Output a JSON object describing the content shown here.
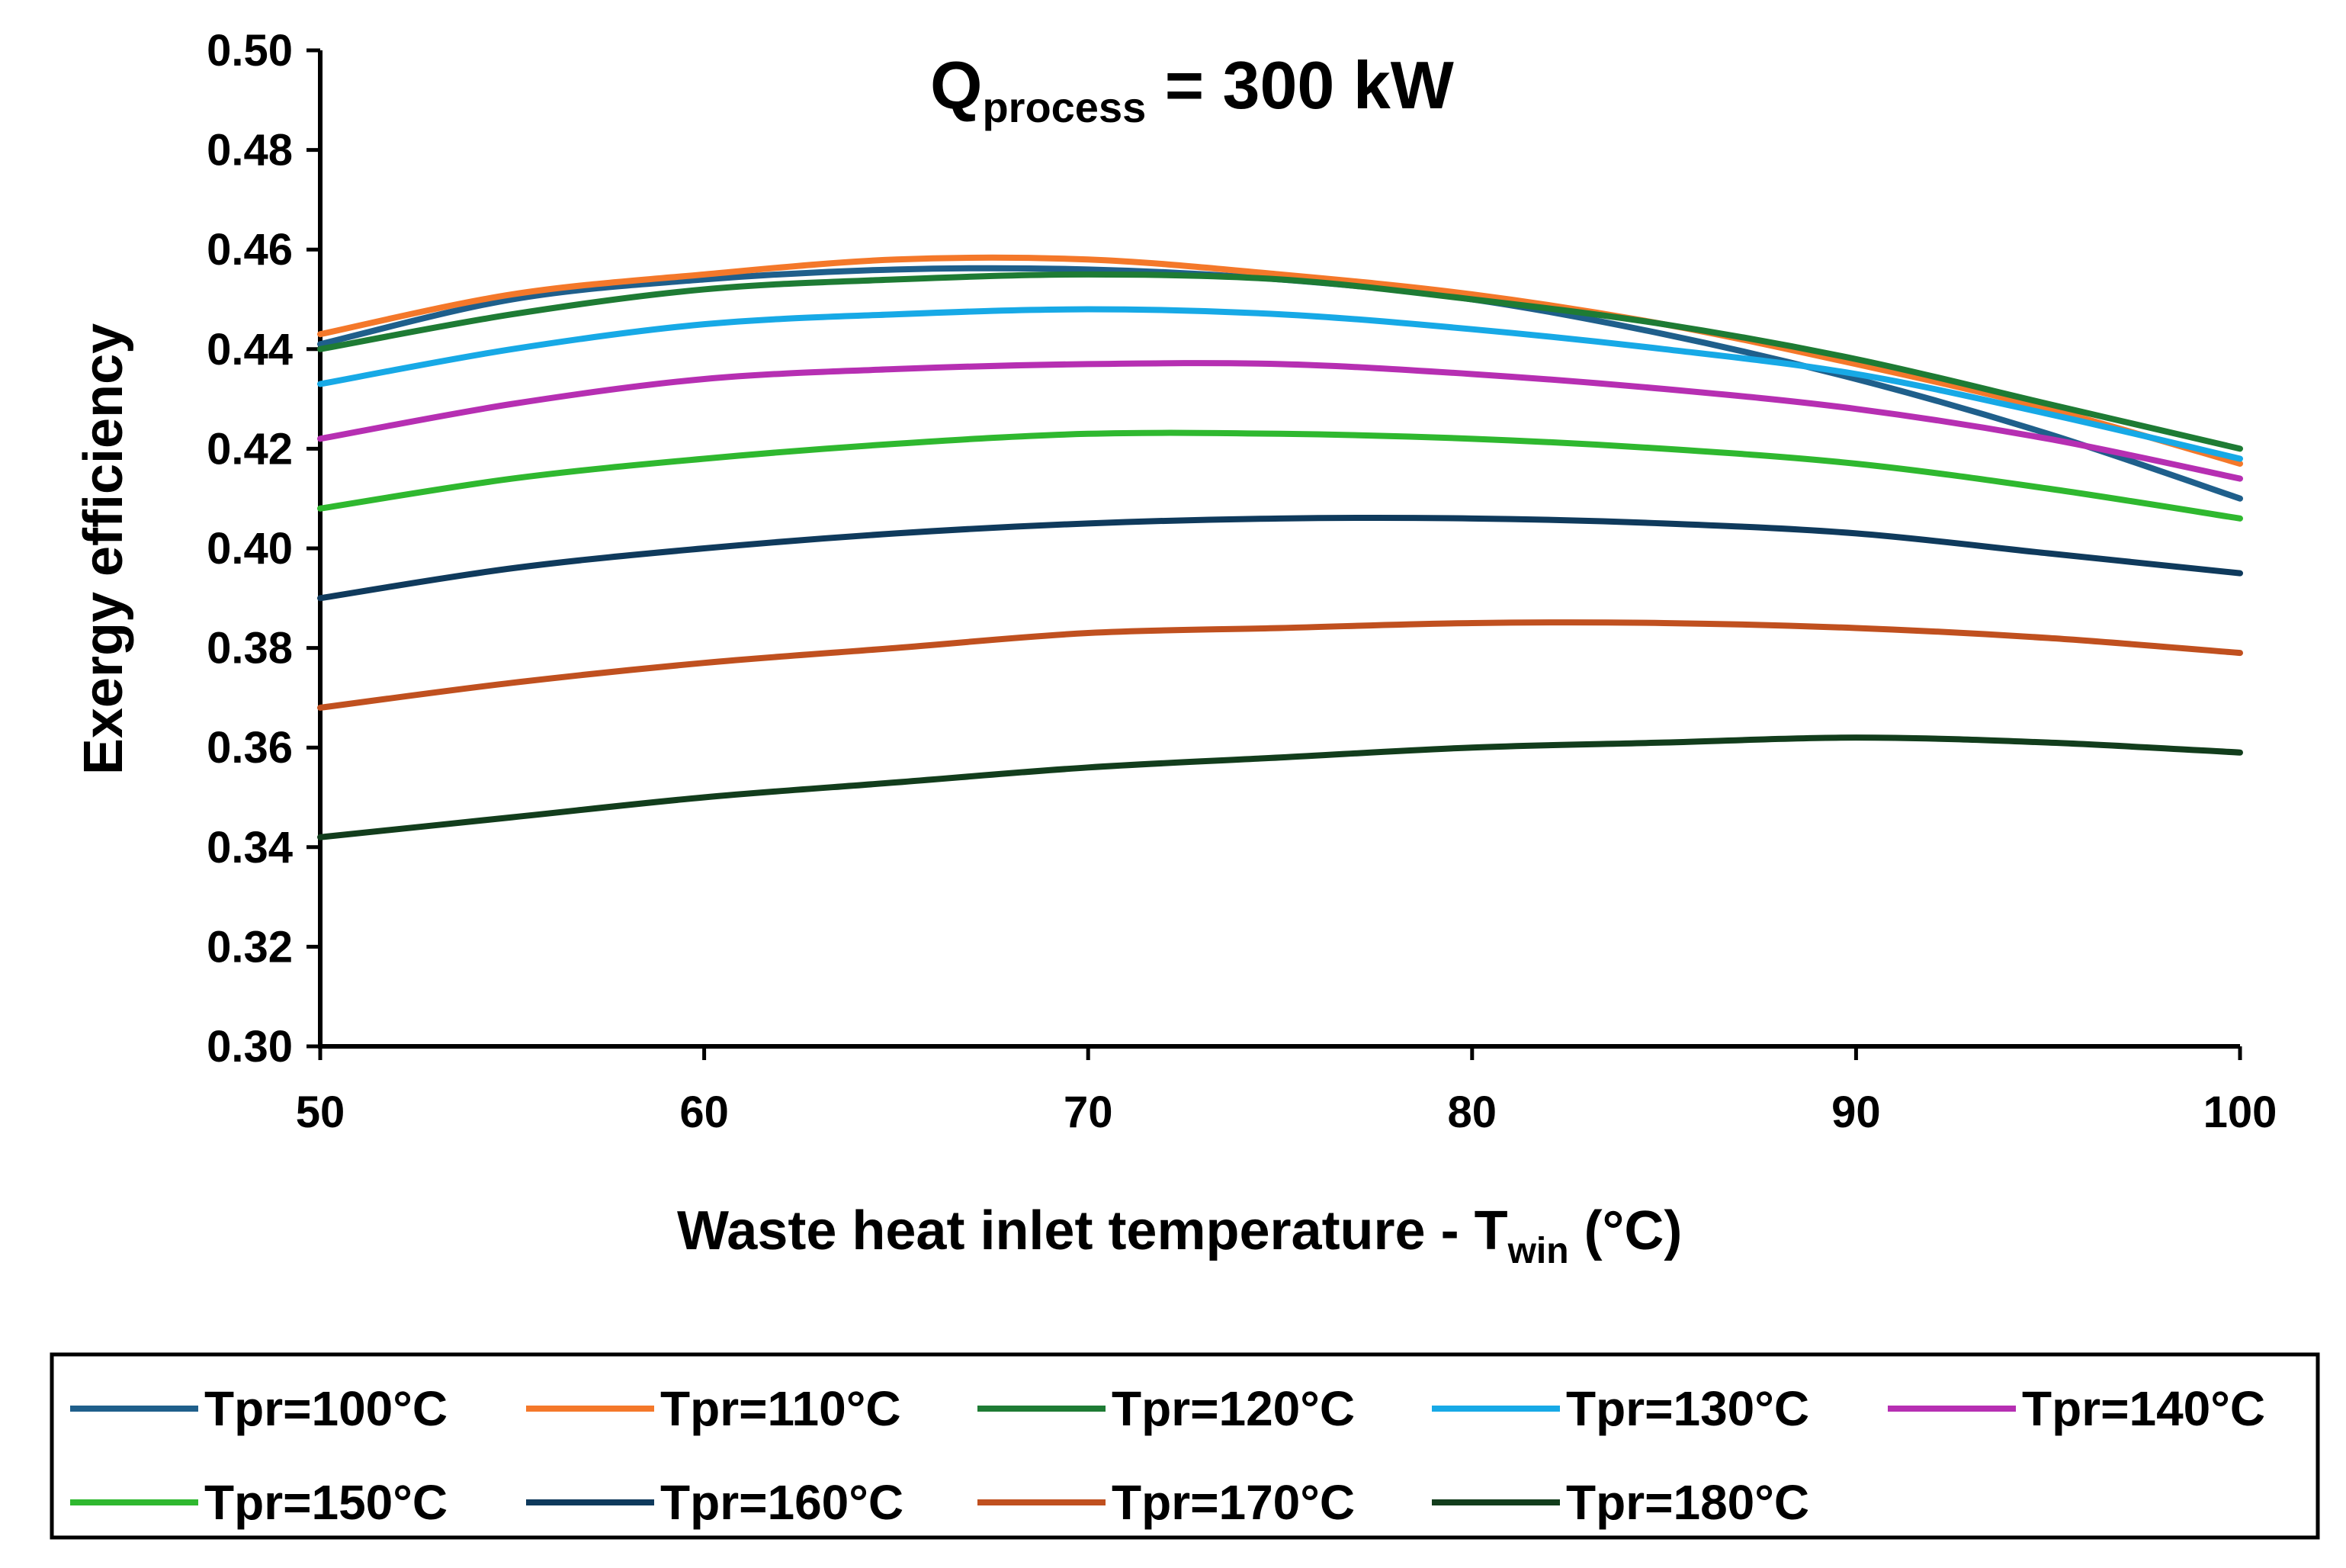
{
  "chart_data": {
    "type": "line",
    "title": {
      "main": "Q",
      "subscript": "process",
      "suffix": " = 300 kW"
    },
    "xlabel": {
      "main": "Waste heat inlet temperature - T",
      "subscript": "win",
      "suffix": " (°C)"
    },
    "ylabel": "Exergy efficiency",
    "xlim": [
      50,
      100
    ],
    "ylim": [
      0.3,
      0.5
    ],
    "xticks": [
      50,
      60,
      70,
      80,
      90,
      100
    ],
    "xtick_labels": [
      "50",
      "60",
      "70",
      "80",
      "90",
      "100"
    ],
    "yticks": [
      0.3,
      0.32,
      0.34,
      0.36,
      0.38,
      0.4,
      0.42,
      0.44,
      0.46,
      0.48,
      0.5
    ],
    "ytick_labels": [
      "0.30",
      "0.32",
      "0.34",
      "0.36",
      "0.38",
      "0.40",
      "0.42",
      "0.44",
      "0.46",
      "0.48",
      "0.50"
    ],
    "grid": false,
    "legend_position": "bottom",
    "x": [
      50,
      55,
      60,
      65,
      70,
      75,
      80,
      85,
      90,
      95,
      100
    ],
    "series": [
      {
        "name": "Tpr=100°C",
        "color": "#1f5f8b",
        "values": [
          0.441,
          0.45,
          0.454,
          0.456,
          0.456,
          0.454,
          0.45,
          0.443,
          0.434,
          0.423,
          0.41
        ]
      },
      {
        "name": "Tpr=110°C",
        "color": "#f4782a",
        "values": [
          0.443,
          0.451,
          0.455,
          0.458,
          0.458,
          0.455,
          0.451,
          0.445,
          0.437,
          0.428,
          0.417
        ]
      },
      {
        "name": "Tpr=120°C",
        "color": "#1e7b34",
        "values": [
          0.44,
          0.447,
          0.452,
          0.454,
          0.455,
          0.454,
          0.45,
          0.445,
          0.438,
          0.429,
          0.42
        ]
      },
      {
        "name": "Tpr=130°C",
        "color": "#17a9e6",
        "values": [
          0.433,
          0.44,
          0.445,
          0.447,
          0.448,
          0.447,
          0.444,
          0.44,
          0.435,
          0.427,
          0.418
        ]
      },
      {
        "name": "Tpr=140°C",
        "color": "#b62fb2",
        "values": [
          0.422,
          0.429,
          0.434,
          0.436,
          0.437,
          0.437,
          0.435,
          0.432,
          0.428,
          0.422,
          0.414
        ]
      },
      {
        "name": "Tpr=150°C",
        "color": "#2fb82f",
        "values": [
          0.408,
          0.414,
          0.418,
          0.421,
          0.423,
          0.423,
          0.422,
          0.42,
          0.417,
          0.412,
          0.406
        ]
      },
      {
        "name": "Tpr=160°C",
        "color": "#0f3a5c",
        "values": [
          0.39,
          0.396,
          0.4,
          0.403,
          0.405,
          0.406,
          0.406,
          0.405,
          0.403,
          0.399,
          0.395
        ]
      },
      {
        "name": "Tpr=170°C",
        "color": "#c0501f",
        "values": [
          0.368,
          0.373,
          0.377,
          0.38,
          0.383,
          0.384,
          0.385,
          0.385,
          0.384,
          0.382,
          0.379
        ]
      },
      {
        "name": "Tpr=180°C",
        "color": "#123d1c",
        "values": [
          0.342,
          0.346,
          0.35,
          0.353,
          0.356,
          0.358,
          0.36,
          0.361,
          0.362,
          0.361,
          0.359
        ]
      }
    ]
  }
}
